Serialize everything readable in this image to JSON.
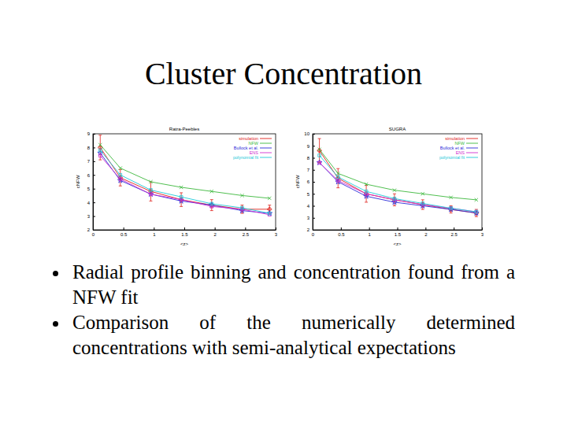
{
  "title": "Cluster Concentration",
  "bullets": [
    "Radial profile binning and concentration found from a NFW fit",
    "Comparison of the numerically determined concentrations with semi-analytical expectations"
  ],
  "chart_data": [
    {
      "type": "line",
      "title": "Ratra-Peebles",
      "x_label": "<z>",
      "y_label": "cNFW",
      "x": [
        0.12,
        0.45,
        0.95,
        1.45,
        1.95,
        2.45,
        2.9
      ],
      "xlim": [
        0,
        3
      ],
      "xticks": [
        0,
        0.5,
        1,
        1.5,
        2,
        2.5,
        3
      ],
      "ylim": [
        2,
        9
      ],
      "yticks": [
        2,
        3,
        4,
        5,
        6,
        7,
        8,
        9
      ],
      "legend": "top-right",
      "series": [
        {
          "name": "simulation",
          "color": "#e0201a",
          "marker": "plus",
          "values": [
            8.0,
            5.8,
            4.8,
            4.2,
            3.8,
            3.5,
            3.5
          ],
          "errors": [
            0.9,
            0.6,
            0.7,
            0.5,
            0.4,
            0.3,
            0.3
          ]
        },
        {
          "name": "NFW",
          "color": "#3cb83c",
          "marker": "cross",
          "values": [
            8.2,
            6.5,
            5.5,
            5.1,
            4.8,
            4.5,
            4.3
          ]
        },
        {
          "name": "Bullock et al.",
          "color": "#2a2ad8",
          "marker": "star",
          "values": [
            7.6,
            5.6,
            4.6,
            4.1,
            3.8,
            3.4,
            3.2
          ]
        },
        {
          "name": "ENS",
          "color": "#d030d0",
          "marker": "square",
          "values": [
            7.4,
            5.7,
            4.6,
            4.2,
            3.7,
            3.5,
            3.1
          ]
        },
        {
          "name": "polynomial fit",
          "color": "#20c8d8",
          "marker": "square",
          "values": [
            7.8,
            6.0,
            4.9,
            4.4,
            3.9,
            3.6,
            3.2
          ]
        }
      ]
    },
    {
      "type": "line",
      "title": "SUGRA",
      "x_label": "<z>",
      "y_label": "cNFW",
      "x": [
        0.12,
        0.45,
        0.95,
        1.45,
        1.95,
        2.45,
        2.9
      ],
      "xlim": [
        0,
        3
      ],
      "xticks": [
        0,
        0.5,
        1,
        1.5,
        2,
        2.5,
        3
      ],
      "ylim": [
        2,
        10
      ],
      "yticks": [
        2,
        3,
        4,
        5,
        6,
        7,
        8,
        9,
        10
      ],
      "legend": "top-right",
      "series": [
        {
          "name": "simulation",
          "color": "#e0201a",
          "marker": "plus",
          "values": [
            8.6,
            6.3,
            5.0,
            4.5,
            4.1,
            3.7,
            3.4
          ],
          "errors": [
            1.0,
            0.8,
            0.7,
            0.5,
            0.4,
            0.3,
            0.3
          ]
        },
        {
          "name": "NFW",
          "color": "#3cb83c",
          "marker": "cross",
          "values": [
            8.7,
            6.7,
            5.8,
            5.3,
            5.0,
            4.7,
            4.5
          ]
        },
        {
          "name": "Bullock et al.",
          "color": "#2a2ad8",
          "marker": "star",
          "values": [
            7.6,
            6.0,
            4.8,
            4.3,
            4.0,
            3.7,
            3.4
          ]
        },
        {
          "name": "ENS",
          "color": "#d030d0",
          "marker": "square",
          "values": [
            7.6,
            6.1,
            5.0,
            4.5,
            4.1,
            3.8,
            3.5
          ]
        },
        {
          "name": "polynomial fit",
          "color": "#20c8d8",
          "marker": "square",
          "values": [
            8.2,
            6.4,
            5.2,
            4.6,
            4.2,
            3.8,
            3.5
          ]
        }
      ]
    }
  ]
}
